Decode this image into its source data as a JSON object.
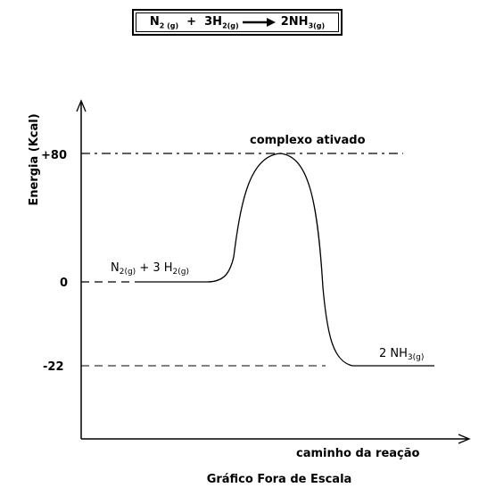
{
  "equation": {
    "reactant1": "N",
    "reactant1_sub": "2 (g)",
    "plus": "+",
    "reactant2": "3H",
    "reactant2_sub": "2(g)",
    "product": "2NH",
    "product_sub": "3(g)"
  },
  "diagram": {
    "y_axis_label": "Energia (Kcal)",
    "x_axis_label": "caminho da reação",
    "caption": "Gráfico Fora de Escala",
    "ticks": [
      "+80",
      "0",
      "-22"
    ],
    "peak_label": "complexo ativado",
    "reactants_label": {
      "a": "N",
      "a_sub": "2(g)",
      "mid": " + 3 H",
      "b_sub": "2(g)"
    },
    "products_label": {
      "a": "2 NH",
      "a_sub": "3(g)"
    },
    "levels": {
      "reactants": 0,
      "activated_complex": 80,
      "products": -22
    }
  }
}
